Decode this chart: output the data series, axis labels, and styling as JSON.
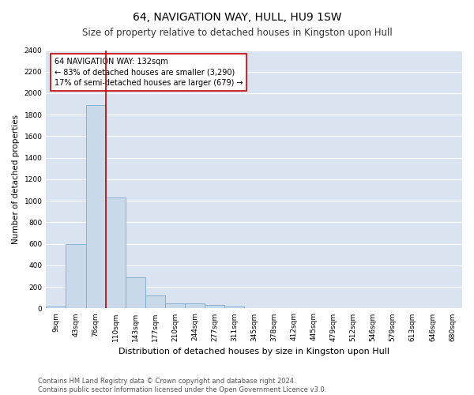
{
  "title": "64, NAVIGATION WAY, HULL, HU9 1SW",
  "subtitle": "Size of property relative to detached houses in Kingston upon Hull",
  "xlabel": "Distribution of detached houses by size in Kingston upon Hull",
  "ylabel": "Number of detached properties",
  "bar_color": "#c8d9ea",
  "bar_edge_color": "#7aabcf",
  "bg_color": "#dae3f0",
  "grid_color": "#ffffff",
  "categories": [
    "9sqm",
    "43sqm",
    "76sqm",
    "110sqm",
    "143sqm",
    "177sqm",
    "210sqm",
    "244sqm",
    "277sqm",
    "311sqm",
    "345sqm",
    "378sqm",
    "412sqm",
    "445sqm",
    "479sqm",
    "512sqm",
    "546sqm",
    "579sqm",
    "613sqm",
    "646sqm",
    "680sqm"
  ],
  "values": [
    20,
    600,
    1890,
    1030,
    290,
    120,
    50,
    45,
    30,
    20,
    0,
    0,
    0,
    0,
    0,
    0,
    0,
    0,
    0,
    0,
    0
  ],
  "red_line_x": 2.5,
  "annotation_text_line1": "64 NAVIGATION WAY: 132sqm",
  "annotation_text_line2": "← 83% of detached houses are smaller (3,290)",
  "annotation_text_line3": "17% of semi-detached houses are larger (679) →",
  "red_line_color": "#cc0000",
  "annotation_box_facecolor": "#ffffff",
  "annotation_box_edgecolor": "#cc0000",
  "ylim": [
    0,
    2400
  ],
  "yticks": [
    0,
    200,
    400,
    600,
    800,
    1000,
    1200,
    1400,
    1600,
    1800,
    2000,
    2200,
    2400
  ],
  "footer_line1": "Contains HM Land Registry data © Crown copyright and database right 2024.",
  "footer_line2": "Contains public sector information licensed under the Open Government Licence v3.0.",
  "title_fontsize": 10,
  "subtitle_fontsize": 8.5,
  "xlabel_fontsize": 8,
  "ylabel_fontsize": 7.5,
  "tick_fontsize": 6.5,
  "annotation_fontsize": 7,
  "footer_fontsize": 6
}
